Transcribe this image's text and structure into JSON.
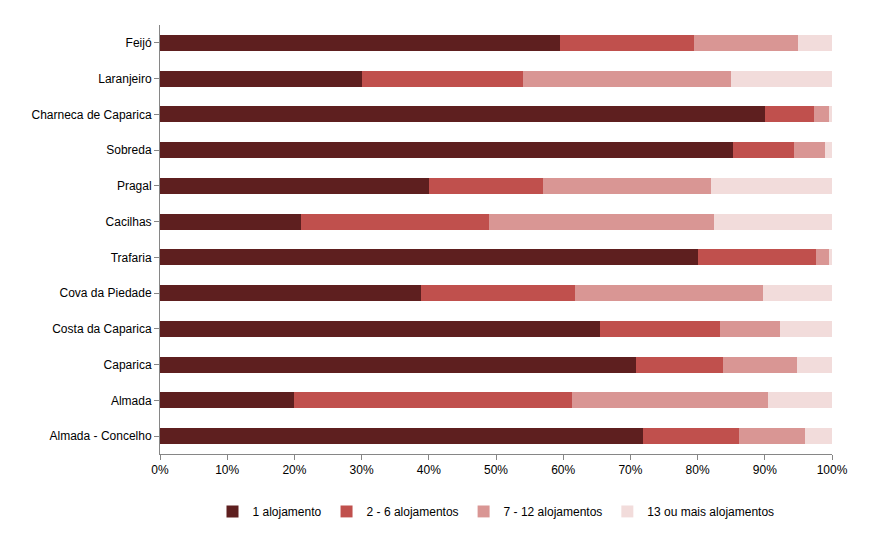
{
  "chart_data": {
    "type": "bar",
    "orientation": "horizontal",
    "stacked": true,
    "grid": false,
    "legend": "bottom",
    "categories": [
      "Feijó",
      "Laranjeiro",
      "Charneca de Caparica",
      "Sobreda",
      "Pragal",
      "Cacilhas",
      "Trafaria",
      "Cova da Piedade",
      "Costa da Caparica",
      "Caparica",
      "Almada",
      "Almada - Concelho"
    ],
    "series": [
      {
        "name": "1 alojamento",
        "color": "#5e1f1f",
        "values": [
          59.5,
          30,
          90,
          85.2,
          40,
          21,
          80,
          38.8,
          65.5,
          70.8,
          20,
          71.8
        ]
      },
      {
        "name": "2 - 6 alojamentos",
        "color": "#c0504d",
        "values": [
          20,
          24,
          7.3,
          9.2,
          17,
          28,
          17.6,
          23,
          17.8,
          13,
          41.3,
          14.3
        ]
      },
      {
        "name": "7 - 12 alojamentos",
        "color": "#d99694",
        "values": [
          15.5,
          31,
          2.2,
          4.6,
          25,
          33.5,
          1.9,
          28,
          9,
          11,
          29.2,
          9.9
        ]
      },
      {
        "name": "13 ou mais alojamentos",
        "color": "#f2dcdb",
        "values": [
          5,
          15,
          0.5,
          1,
          18,
          17.5,
          0.5,
          10.2,
          7.7,
          5.2,
          9.5,
          4
        ]
      }
    ],
    "xlim": [
      0,
      100
    ],
    "xticks": [
      {
        "value": 0,
        "label": "0%"
      },
      {
        "value": 10,
        "label": "10%"
      },
      {
        "value": 20,
        "label": "20%"
      },
      {
        "value": 30,
        "label": "30%"
      },
      {
        "value": 40,
        "label": "40%"
      },
      {
        "value": 50,
        "label": "50%"
      },
      {
        "value": 60,
        "label": "60%"
      },
      {
        "value": 70,
        "label": "70%"
      },
      {
        "value": 80,
        "label": "80%"
      },
      {
        "value": 90,
        "label": "90%"
      },
      {
        "value": 100,
        "label": "100%"
      }
    ]
  }
}
